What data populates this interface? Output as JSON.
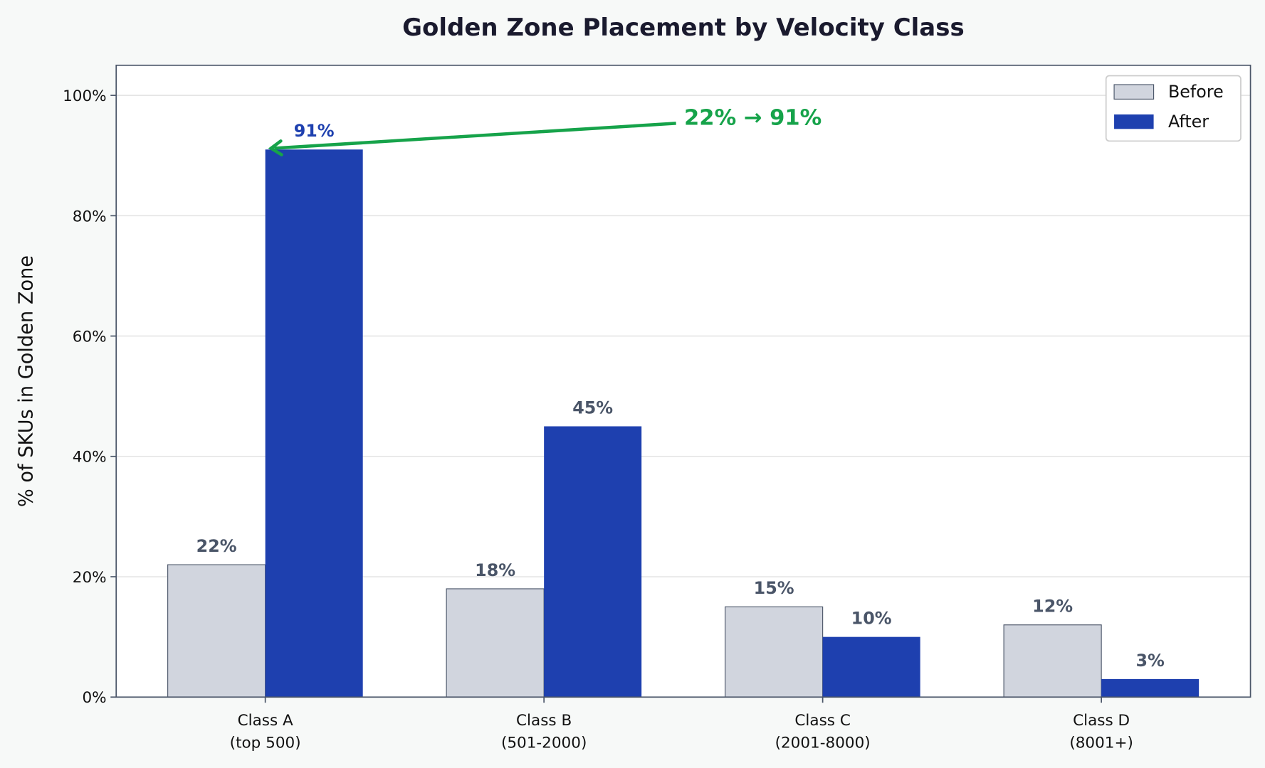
{
  "chart_data": {
    "type": "bar",
    "title": "Golden Zone Placement by Velocity Class",
    "xlabel": "",
    "ylabel": "% of SKUs in Golden Zone",
    "categories": [
      [
        "Class A",
        "(top 500)"
      ],
      [
        "Class B",
        "(501-2000)"
      ],
      [
        "Class C",
        "(2001-8000)"
      ],
      [
        "Class D",
        "(8001+)"
      ]
    ],
    "series": [
      {
        "name": "Before",
        "values": [
          22,
          18,
          15,
          12
        ],
        "labels": [
          "22%",
          "18%",
          "15%",
          "12%"
        ],
        "color": "#d1d5de",
        "edge": "#4a5568"
      },
      {
        "name": "After",
        "values": [
          91,
          45,
          10,
          3
        ],
        "labels": [
          "91%",
          "45%",
          "10%",
          "3%"
        ],
        "color": "#1e40af"
      }
    ],
    "ylim": [
      0,
      105
    ],
    "yticks": [
      0,
      20,
      40,
      60,
      80,
      100
    ],
    "ytick_labels": [
      "0%",
      "20%",
      "40%",
      "60%",
      "80%",
      "100%"
    ],
    "grid": "horizontal",
    "legend": "top-right",
    "annotation": {
      "text": "22% → 91%",
      "color": "#16a34a",
      "points_to": "Class A After"
    },
    "highlight_label_color": "#1e40af",
    "label_color": "#4a5568"
  }
}
